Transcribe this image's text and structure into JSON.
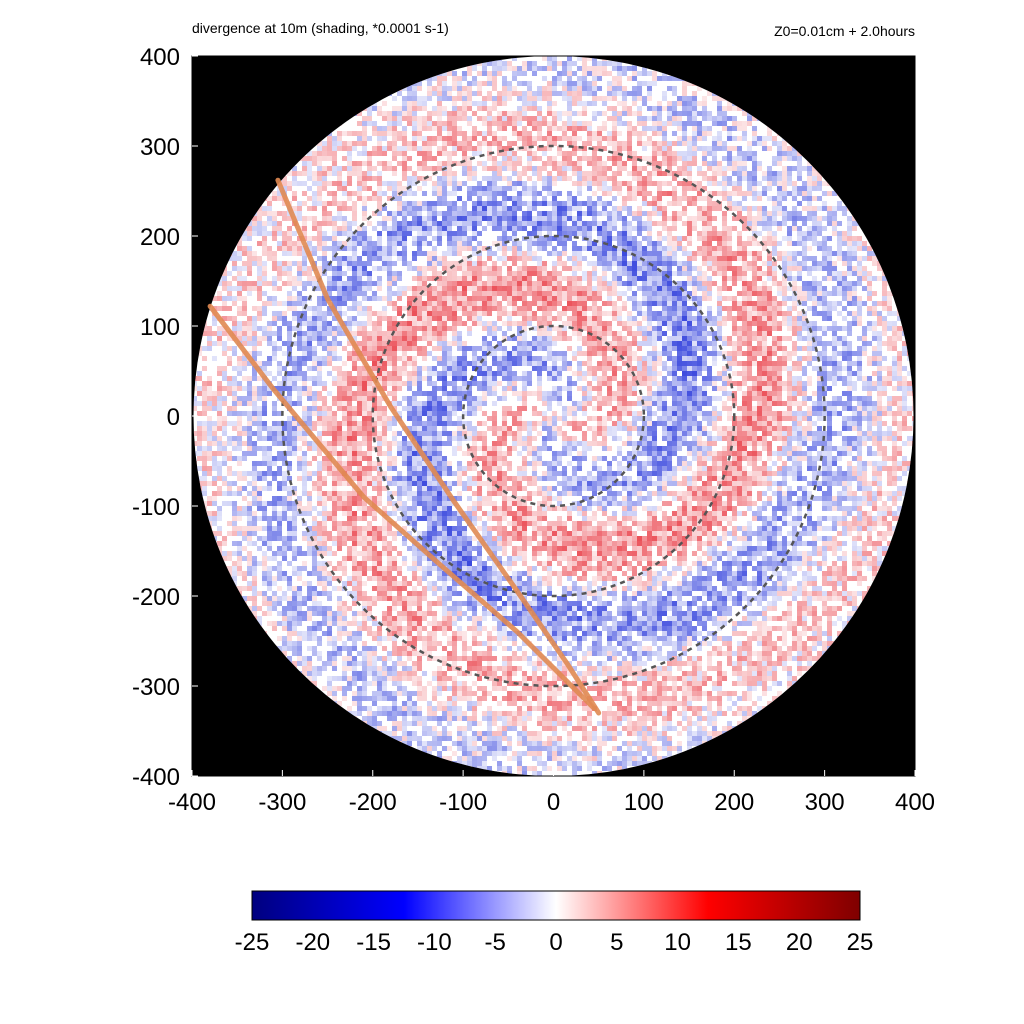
{
  "chart_data": {
    "type": "heatmap",
    "title": "divergence at 10m (shading, *0.0001 s-1)",
    "subtitle": "Z0=0.01cm  + 2.0hours",
    "xlabel": "",
    "ylabel": "",
    "xlim": [
      -400,
      400
    ],
    "ylim": [
      -400,
      400
    ],
    "x_ticks": [
      "-400",
      "-300",
      "-200",
      "-100",
      "0",
      "100",
      "200",
      "300",
      "400"
    ],
    "y_ticks": [
      "400",
      "300",
      "200",
      "100",
      "0",
      "-100",
      "-200",
      "-300",
      "-400"
    ],
    "domain_radius": 400,
    "range_rings": [
      100,
      200,
      300
    ],
    "tracks": [
      {
        "points": [
          [
            -305,
            262
          ],
          [
            -250,
            130
          ],
          [
            -180,
            10
          ],
          [
            -110,
            -95
          ],
          [
            -40,
            -195
          ],
          [
            15,
            -275
          ],
          [
            50,
            -330
          ]
        ]
      },
      {
        "points": [
          [
            -380,
            122
          ],
          [
            -310,
            30
          ],
          [
            -210,
            -90
          ],
          [
            -120,
            -170
          ],
          [
            -40,
            -240
          ],
          [
            45,
            -325
          ]
        ]
      }
    ],
    "colorbar": {
      "min": -25,
      "max": 25,
      "tick_labels": [
        "-25",
        "-20",
        "-15",
        "-10",
        "-5",
        "0",
        "5",
        "10",
        "15",
        "20",
        "25"
      ],
      "colors": [
        "#00007f",
        "#0000ff",
        "#ffffff",
        "#ff0000",
        "#7f0000"
      ]
    },
    "colors": {
      "outside_domain": "#000000",
      "ring": "#555555",
      "track": "#e08a52",
      "negative": "#1a2ad8",
      "positive": "#e8323c"
    },
    "grid": false
  }
}
